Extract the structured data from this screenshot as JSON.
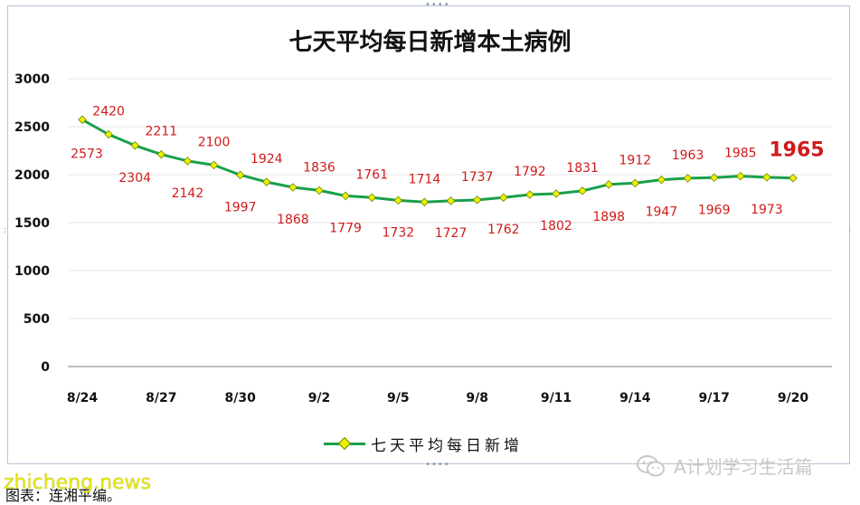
{
  "chart_data": {
    "type": "line",
    "title": "七天平均每日新增本土病例",
    "xlabel": "",
    "ylabel": "",
    "ylim": [
      0,
      3000
    ],
    "yticks": [
      "0",
      "500",
      "1000",
      "1500",
      "2000",
      "2500",
      "3000"
    ],
    "x": [
      "8/24",
      "8/25",
      "8/26",
      "8/27",
      "8/28",
      "8/29",
      "8/30",
      "8/31",
      "9/1",
      "9/2",
      "9/3",
      "9/4",
      "9/5",
      "9/6",
      "9/7",
      "9/8",
      "9/9",
      "9/10",
      "9/11",
      "9/12",
      "9/13",
      "9/14",
      "9/15",
      "9/16",
      "9/17",
      "9/18",
      "9/19",
      "9/20"
    ],
    "xtick_labels": [
      "8/24",
      "8/27",
      "8/30",
      "9/2",
      "9/5",
      "9/8",
      "9/11",
      "9/14",
      "9/17",
      "9/20"
    ],
    "series": [
      {
        "name": "七天平均每日新增",
        "values": [
          2573,
          2420,
          2304,
          2211,
          2142,
          2100,
          1997,
          1924,
          1868,
          1836,
          1779,
          1761,
          1732,
          1714,
          1727,
          1737,
          1762,
          1792,
          1802,
          1831,
          1898,
          1912,
          1947,
          1963,
          1969,
          1985,
          1973,
          1965
        ]
      }
    ],
    "grid": true,
    "legend": "bottom",
    "colors": {
      "line": "#1aa04a",
      "marker": "#eef000",
      "labels": "#d11a1a"
    }
  },
  "watermarks": {
    "right": "A计划学习生活篇",
    "left": "zhicheng.news",
    "right_icon": "wechat-icon"
  },
  "source_note": "图表：连湘平编。"
}
